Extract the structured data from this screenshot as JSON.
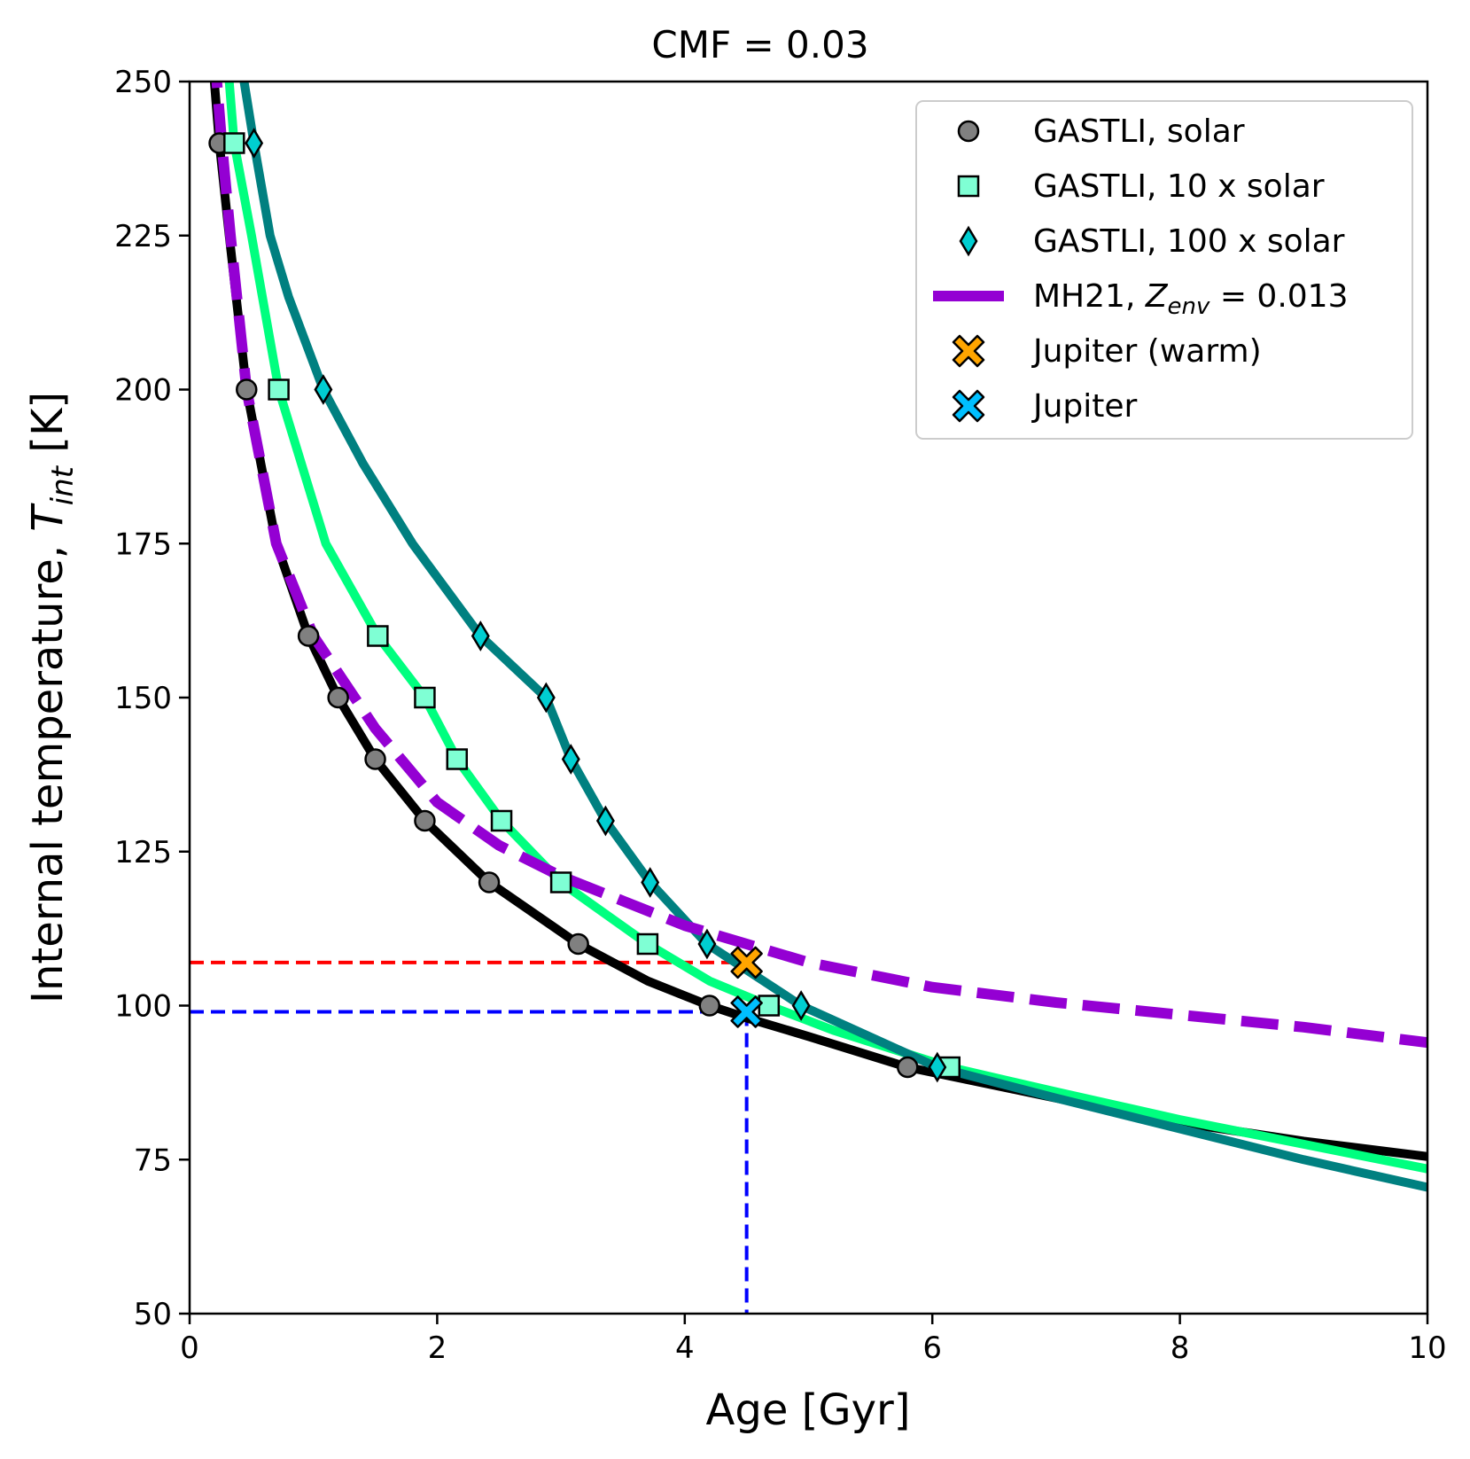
{
  "chart_data": {
    "type": "line",
    "title": "CMF = 0.03",
    "xlabel": "Age [Gyr]",
    "ylabel_main": "Internal temperature, ",
    "ylabel_symbol": "T",
    "ylabel_sub": "int",
    "ylabel_unit": " [K]",
    "xlim": [
      0,
      10
    ],
    "ylim": [
      50,
      250
    ],
    "xticks": [
      0,
      2,
      4,
      6,
      8,
      10
    ],
    "yticks": [
      50,
      75,
      100,
      125,
      150,
      175,
      200,
      225,
      250
    ],
    "xtick_labels": [
      "0",
      "2",
      "4",
      "6",
      "8",
      "10"
    ],
    "ytick_labels": [
      "50",
      "75",
      "100",
      "125",
      "150",
      "175",
      "200",
      "225",
      "250"
    ],
    "grid": false,
    "legend_position": "top-right",
    "series": [
      {
        "name": "GASTLI, solar",
        "legend_label": "GASTLI, solar",
        "marker": "circle",
        "line_color": "#000000",
        "marker_color": "#808080",
        "line": [
          [
            0.18,
            255
          ],
          [
            0.24,
            240
          ],
          [
            0.32,
            225
          ],
          [
            0.46,
            200
          ],
          [
            0.7,
            175
          ],
          [
            0.96,
            160
          ],
          [
            1.2,
            150
          ],
          [
            1.5,
            140
          ],
          [
            1.9,
            130
          ],
          [
            2.42,
            120
          ],
          [
            3.14,
            110
          ],
          [
            3.7,
            104
          ],
          [
            4.2,
            100
          ],
          [
            4.5,
            98
          ],
          [
            5.0,
            95
          ],
          [
            5.8,
            90
          ],
          [
            7.0,
            85
          ],
          [
            8.0,
            81
          ],
          [
            9.0,
            78
          ],
          [
            10.0,
            75.5
          ]
        ],
        "points": [
          [
            0.24,
            240
          ],
          [
            0.46,
            200
          ],
          [
            0.96,
            160
          ],
          [
            1.2,
            150
          ],
          [
            1.5,
            140
          ],
          [
            1.9,
            130
          ],
          [
            2.42,
            120
          ],
          [
            3.14,
            110
          ],
          [
            4.2,
            100
          ],
          [
            5.8,
            90
          ]
        ]
      },
      {
        "name": "GASTLI, 10 x solar",
        "legend_label": "GASTLI, 10 x solar",
        "marker": "square",
        "line_color": "#00ff7f",
        "marker_color": "#7fffd4",
        "line": [
          [
            0.3,
            255
          ],
          [
            0.36,
            240
          ],
          [
            0.5,
            225
          ],
          [
            0.72,
            200
          ],
          [
            1.1,
            175
          ],
          [
            1.52,
            160
          ],
          [
            1.9,
            150
          ],
          [
            2.16,
            140
          ],
          [
            2.52,
            130
          ],
          [
            3.0,
            120
          ],
          [
            3.7,
            110
          ],
          [
            4.2,
            104
          ],
          [
            4.68,
            100
          ],
          [
            5.2,
            96
          ],
          [
            6.14,
            90
          ],
          [
            7.0,
            86
          ],
          [
            8.0,
            81.5
          ],
          [
            9.0,
            77.5
          ],
          [
            10.0,
            73.5
          ]
        ],
        "points": [
          [
            0.36,
            240
          ],
          [
            0.72,
            200
          ],
          [
            1.52,
            160
          ],
          [
            1.9,
            150
          ],
          [
            2.16,
            140
          ],
          [
            2.52,
            130
          ],
          [
            3.0,
            120
          ],
          [
            3.7,
            110
          ],
          [
            4.68,
            100
          ],
          [
            6.14,
            90
          ]
        ]
      },
      {
        "name": "GASTLI, 100 x solar",
        "legend_label": "GASTLI, 100 x solar",
        "marker": "diamond",
        "line_color": "#008080",
        "marker_color": "#00ced1",
        "line": [
          [
            0.4,
            255
          ],
          [
            0.52,
            240
          ],
          [
            0.65,
            225
          ],
          [
            0.8,
            215
          ],
          [
            1.08,
            200
          ],
          [
            1.4,
            188
          ],
          [
            1.8,
            175
          ],
          [
            2.35,
            160
          ],
          [
            2.88,
            150
          ],
          [
            3.08,
            140
          ],
          [
            3.36,
            130
          ],
          [
            3.72,
            120
          ],
          [
            4.18,
            110
          ],
          [
            4.94,
            100
          ],
          [
            6.04,
            90
          ],
          [
            7.0,
            85
          ],
          [
            8.0,
            80
          ],
          [
            9.0,
            75
          ],
          [
            10.0,
            70.5
          ]
        ],
        "points": [
          [
            0.52,
            240
          ],
          [
            1.08,
            200
          ],
          [
            2.35,
            160
          ],
          [
            2.88,
            150
          ],
          [
            3.08,
            140
          ],
          [
            3.36,
            130
          ],
          [
            3.72,
            120
          ],
          [
            4.18,
            110
          ],
          [
            4.94,
            100
          ],
          [
            6.04,
            90
          ]
        ]
      },
      {
        "name": "MH21, Z_env = 0.013",
        "legend_label": "MH21, ",
        "legend_symbol": "Z",
        "legend_sub": "env",
        "legend_value": " = 0.013",
        "style": "dashed",
        "line_color": "#9400d3",
        "line": [
          [
            0.2,
            255
          ],
          [
            0.26,
            240
          ],
          [
            0.33,
            225
          ],
          [
            0.46,
            200
          ],
          [
            0.7,
            175
          ],
          [
            1.0,
            160
          ],
          [
            1.5,
            145
          ],
          [
            2.0,
            133
          ],
          [
            2.5,
            126
          ],
          [
            3.0,
            121
          ],
          [
            3.5,
            117
          ],
          [
            4.0,
            113
          ],
          [
            4.5,
            110
          ],
          [
            5.0,
            107
          ],
          [
            6.0,
            103
          ],
          [
            7.0,
            100.5
          ],
          [
            8.0,
            98.5
          ],
          [
            9.0,
            96.5
          ],
          [
            10.0,
            94
          ]
        ]
      }
    ],
    "highlight_points": [
      {
        "name": "Jupiter (warm)",
        "legend_label": "Jupiter (warm)",
        "marker": "x",
        "color": "#ffa500",
        "x": 4.5,
        "y": 107
      },
      {
        "name": "Jupiter",
        "legend_label": "Jupiter",
        "marker": "x",
        "color": "#00bfff",
        "x": 4.5,
        "y": 99
      }
    ],
    "reference_lines": [
      {
        "name": "warm-reference",
        "color": "#ff0000",
        "x": 4.5,
        "y": 107,
        "vertical": false
      },
      {
        "name": "jupiter-reference",
        "color": "#0000ff",
        "x": 4.5,
        "y": 99,
        "vertical": true
      }
    ]
  }
}
